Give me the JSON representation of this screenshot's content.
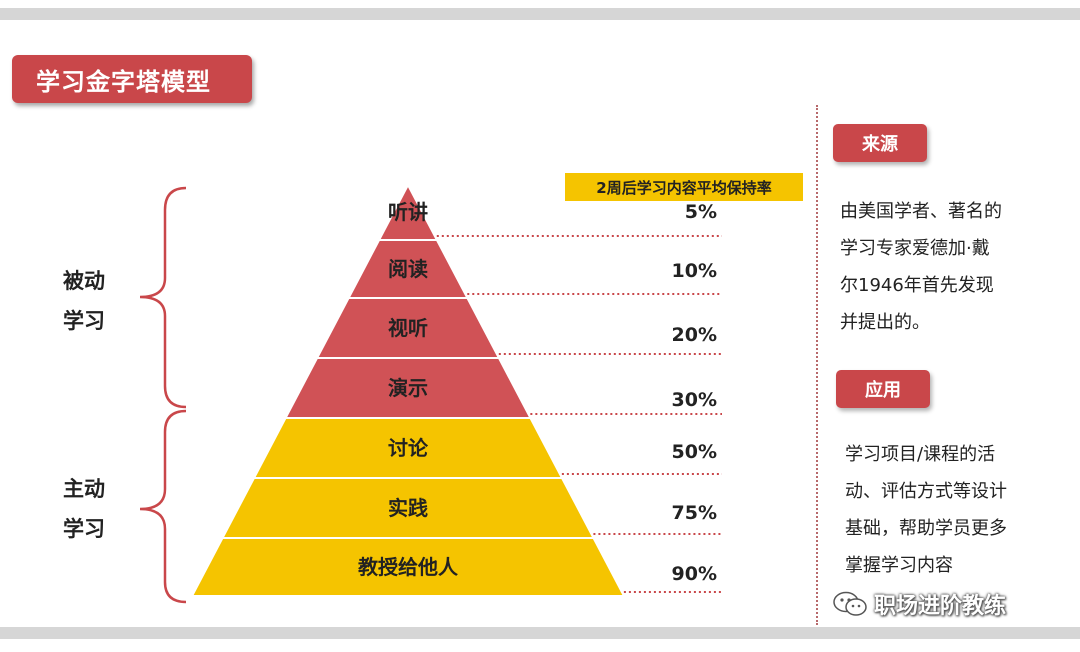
{
  "title": "学习金字塔模型",
  "groups": {
    "passive": [
      "被动",
      "学习"
    ],
    "active": [
      "主动",
      "学习"
    ]
  },
  "retention_header": "2周后学习内容平均保持率",
  "colors": {
    "passive": "#d05256",
    "active": "#f5c400",
    "accent": "#c9474a",
    "header": "#f5c400"
  },
  "levels": [
    {
      "label": "听讲",
      "retention": "5%",
      "group": "passive"
    },
    {
      "label": "阅读",
      "retention": "10%",
      "group": "passive"
    },
    {
      "label": "视听",
      "retention": "20%",
      "group": "passive"
    },
    {
      "label": "演示",
      "retention": "30%",
      "group": "passive"
    },
    {
      "label": "讨论",
      "retention": "50%",
      "group": "active"
    },
    {
      "label": "实践",
      "retention": "75%",
      "group": "active"
    },
    {
      "label": "教授给他人",
      "retention": "90%",
      "group": "active"
    }
  ],
  "source": {
    "tag": "来源",
    "lines": [
      "由美国学者、著名的",
      "学习专家爱德加·戴",
      "尔1946年首先发现",
      "并提出的。"
    ]
  },
  "application": {
    "tag": "应用",
    "lines": [
      "学习项目/课程的活",
      "动、评估方式等设计",
      "基础，帮助学员更多",
      "掌握学习内容"
    ]
  },
  "watermark": "职场进阶教练"
}
